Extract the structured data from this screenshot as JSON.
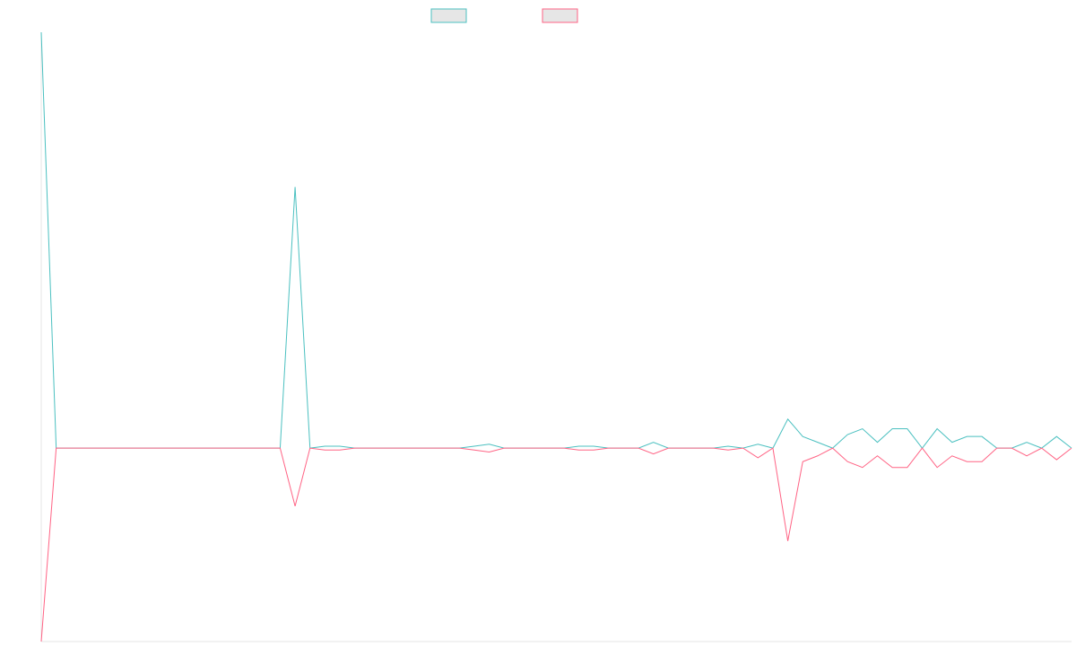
{
  "colors": {
    "series_a": "#4bc0c0",
    "series_b": "#ff6384",
    "swatch_fill": "#e6e6e6",
    "axis": "#e5e5e5",
    "background": "#ffffff"
  },
  "chart_data": {
    "type": "line",
    "title": "",
    "xlabel": "",
    "ylabel": "",
    "grid": false,
    "legend_position": "top-center",
    "x": [
      1,
      2,
      3,
      4,
      5,
      6,
      7,
      8,
      9,
      10,
      11,
      12,
      13,
      14,
      15,
      16,
      17,
      18,
      19,
      20,
      21,
      22,
      23,
      24,
      25,
      26,
      27,
      28,
      29,
      30,
      31,
      32,
      33,
      34,
      35,
      36,
      37,
      38,
      39,
      40,
      41,
      42,
      43,
      44,
      45,
      46,
      47,
      48,
      49,
      50,
      51,
      52,
      53,
      54,
      55,
      56,
      57,
      58,
      59,
      60,
      61,
      62,
      63,
      64,
      65,
      66,
      67,
      68,
      69,
      70
    ],
    "ylim": [
      -100,
      215
    ],
    "series": [
      {
        "name": "",
        "color": "#4bc0c0",
        "values": [
          215,
          0,
          0,
          0,
          0,
          0,
          0,
          0,
          0,
          0,
          0,
          0,
          0,
          0,
          0,
          0,
          0,
          135,
          0,
          1,
          1,
          0,
          0,
          0,
          0,
          0,
          0,
          0,
          0,
          1,
          2,
          0,
          0,
          0,
          0,
          0,
          1,
          1,
          0,
          0,
          0,
          3,
          0,
          0,
          0,
          0,
          1,
          0,
          2,
          0,
          15,
          6,
          3,
          0,
          7,
          10,
          3,
          10,
          10,
          0,
          10,
          3,
          6,
          6,
          0,
          0,
          3,
          0,
          6,
          0
        ]
      },
      {
        "name": "",
        "color": "#ff6384",
        "values": [
          -100,
          0,
          0,
          0,
          0,
          0,
          0,
          0,
          0,
          0,
          0,
          0,
          0,
          0,
          0,
          0,
          0,
          -30,
          0,
          -1,
          -1,
          0,
          0,
          0,
          0,
          0,
          0,
          0,
          0,
          -1,
          -2,
          0,
          0,
          0,
          0,
          0,
          -1,
          -1,
          0,
          0,
          0,
          -3,
          0,
          0,
          0,
          0,
          -1,
          0,
          -5,
          0,
          -48,
          -7,
          -4,
          0,
          -7,
          -10,
          -4,
          -10,
          -10,
          0,
          -10,
          -4,
          -7,
          -7,
          0,
          0,
          -4,
          0,
          -6,
          0
        ]
      }
    ]
  }
}
